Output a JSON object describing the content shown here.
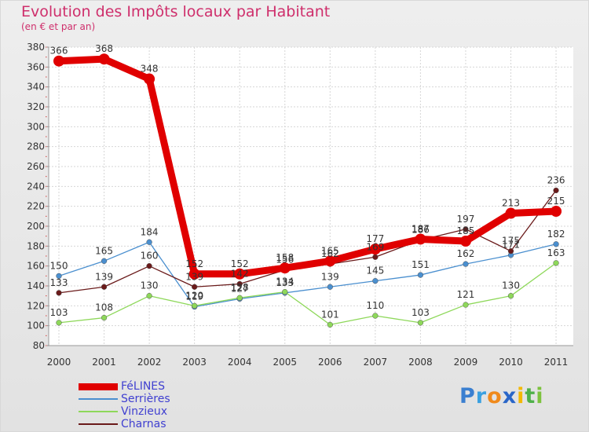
{
  "title": "Evolution des Impôts locaux par Habitant",
  "subtitle": "(en € et par an)",
  "logo": "Proxiti",
  "chart_data": {
    "type": "line",
    "title": "Evolution des Impôts locaux par Habitant",
    "subtitle": "(en € et par an)",
    "xlabel": "",
    "ylabel": "",
    "ylim": [
      80,
      380
    ],
    "ytick_step": 20,
    "grid": true,
    "legend": "bottom-left",
    "categories": [
      "2000",
      "2001",
      "2002",
      "2003",
      "2004",
      "2005",
      "2006",
      "2007",
      "2008",
      "2009",
      "2010",
      "2011"
    ],
    "series": [
      {
        "name": "FéLINES",
        "color": "#e00000",
        "values": [
          366,
          368,
          348,
          152,
          152,
          158,
          165,
          177,
          187,
          185,
          213,
          215
        ]
      },
      {
        "name": "Serrières",
        "color": "#4a8fcf",
        "values": [
          150,
          165,
          184,
          119,
          127,
          133,
          139,
          145,
          151,
          162,
          171,
          182
        ]
      },
      {
        "name": "Vinzieux",
        "color": "#8ed85a",
        "values": [
          103,
          108,
          130,
          120,
          128,
          134,
          101,
          110,
          103,
          121,
          130,
          163
        ]
      },
      {
        "name": "Charnas",
        "color": "#6a1a1a",
        "values": [
          133,
          139,
          160,
          139,
          142,
          156,
          162,
          169,
          186,
          197,
          175,
          236
        ]
      }
    ]
  }
}
